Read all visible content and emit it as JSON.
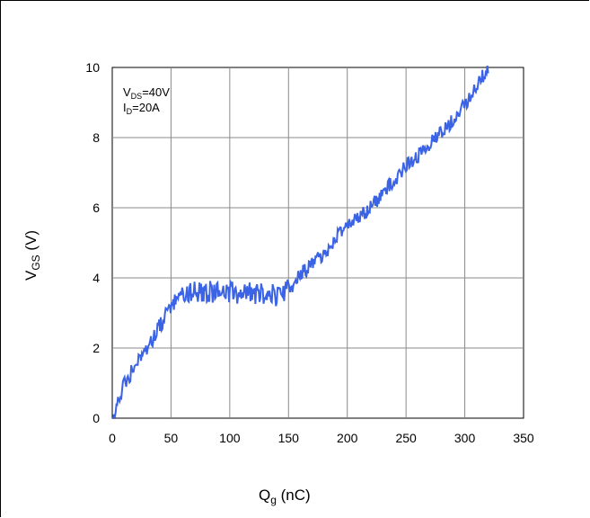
{
  "chart_data": {
    "type": "line",
    "xlabel": {
      "main": "Q",
      "sub": "g",
      "unit": " (nC)"
    },
    "ylabel": {
      "main": "V",
      "sub": "GS",
      "unit": " (V)"
    },
    "xlim": [
      0,
      350
    ],
    "ylim": [
      0,
      10
    ],
    "x_ticks": [
      "0",
      "50",
      "100",
      "150",
      "200",
      "250",
      "300",
      "350"
    ],
    "y_ticks": [
      "0",
      "2",
      "4",
      "6",
      "8",
      "10"
    ],
    "grid": true,
    "line_color": "#3b63e6",
    "annotations": [
      {
        "main": "V",
        "sub": "DS",
        "rest": "=40V"
      },
      {
        "main": "I",
        "sub": "D",
        "rest": "=20A"
      }
    ],
    "series": [
      {
        "values": [
          [
            0,
            0
          ],
          [
            5,
            0.5
          ],
          [
            10,
            1.0
          ],
          [
            20,
            1.5
          ],
          [
            30,
            2.0
          ],
          [
            40,
            2.6
          ],
          [
            50,
            3.2
          ],
          [
            55,
            3.4
          ],
          [
            60,
            3.55
          ],
          [
            80,
            3.6
          ],
          [
            100,
            3.6
          ],
          [
            120,
            3.55
          ],
          [
            140,
            3.5
          ],
          [
            148,
            3.6
          ],
          [
            155,
            3.85
          ],
          [
            160,
            4.1
          ],
          [
            180,
            4.7
          ],
          [
            200,
            5.5
          ],
          [
            220,
            6.0
          ],
          [
            240,
            6.8
          ],
          [
            250,
            7.2
          ],
          [
            270,
            7.8
          ],
          [
            290,
            8.5
          ],
          [
            300,
            8.9
          ],
          [
            310,
            9.5
          ],
          [
            320,
            10.0
          ]
        ]
      }
    ]
  }
}
